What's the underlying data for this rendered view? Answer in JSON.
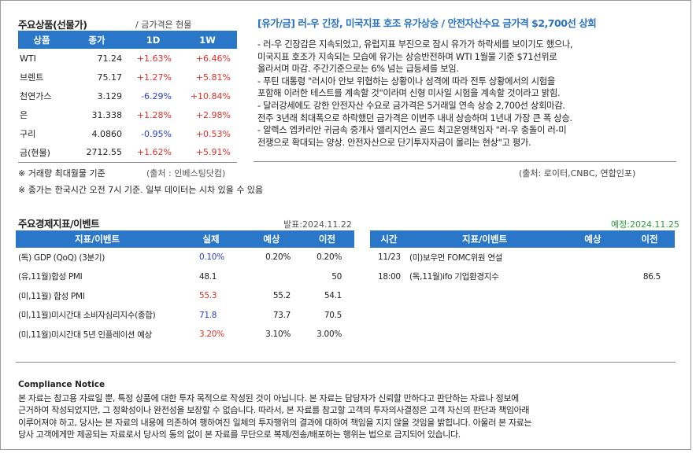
{
  "prices": {
    "title": "주요상품(선물가)",
    "subtitle": "/ 금가격은 현물",
    "headers": [
      "상품",
      "종가",
      "1D",
      "1W"
    ],
    "rows": [
      {
        "name": "WTI",
        "close": "71.24",
        "d1": "+1.63%",
        "w1": "+6.46%",
        "d1_dir": "up",
        "w1_dir": "up"
      },
      {
        "name": "브렌트",
        "close": "75.17",
        "d1": "+1.27%",
        "w1": "+5.81%",
        "d1_dir": "up",
        "w1_dir": "up"
      },
      {
        "name": "천연가스",
        "close": "3.129",
        "d1": "-6.29%",
        "w1": "+10.84%",
        "d1_dir": "down",
        "w1_dir": "up"
      },
      {
        "name": "은",
        "close": "31.338",
        "d1": "+1.28%",
        "w1": "+2.98%",
        "d1_dir": "up",
        "w1_dir": "up"
      },
      {
        "name": "구리",
        "close": "4.0860",
        "d1": "-0.95%",
        "w1": "+0.53%",
        "d1_dir": "down",
        "w1_dir": "up"
      },
      {
        "name": "금(현물)",
        "close": "2712.55",
        "d1": "+1.62%",
        "w1": "+5.91%",
        "d1_dir": "up",
        "w1_dir": "up"
      }
    ],
    "note1": "※ 거래량 최대월물 기준",
    "source": "(출처 : 인베스팅닷컴)",
    "note2": "※ 종가는 한국시간 오전 7시 기준. 일부 데이터는 시차 있을 수 있음"
  },
  "news": {
    "title": "[유가/금] 러-우 긴장, 미국지표 호조 유가상승 / 안전자산수요 금가격 $2,700선 상회",
    "lines": [
      "- 러-우 긴장감은 지속되었고, 유럽지표 부진으로 잠시 유가가 하락세를 보이기도 했으나,",
      "미국지표 호조가 지속되는 모습에 유가는 상승반전하며 WTI 1월물 기준 $71선위로",
      "올라서며 마감. 주간기준으로는 6% 넘는 급등세를 보임.",
      "- 푸틴 대통령 \"러시아 안보 위협하는 상황이나 성격에 따라 전투 상황에서의 시험을",
      "포함해 이러한 테스트를 계속할 것\"이라며 신형 미사일 시험을 계속할 것이라고 밝힘.",
      "- 달러강세에도 강한 안전자산 수요로 금가격은 5거래일 연속 상승 2,700선 상회마감.",
      "전주 3년래 최대폭으로 하락했던 금가격은 이번주 내내 상승하며 1년내 가장 큰 폭 상승.",
      "- 알렉스 엡카리안 귀금속 중개사 앨리지언스 골드 최고운영책임자 \"러-우 충돌이 러-미",
      "전쟁으로 확대되는 양상. 안전자산으로 단기투자자금이 몰리는 현상\"고 평가."
    ],
    "source": "(출처: 로이터,CNBC, 연합인포)"
  },
  "events": {
    "title": "주요경제지표/이벤트",
    "announce_date": "발표:2024.11.22",
    "scheduled_date": "예정:2024.11.25",
    "left_headers": [
      "지표/이벤트",
      "실제",
      "예상",
      "이전"
    ],
    "left_rows": [
      {
        "name": "(독) GDP (QoQ) (3분기)",
        "actual": "0.10%",
        "forecast": "0.20%",
        "prev": "0.20%",
        "actual_dir": "down"
      },
      {
        "name": "(유,11월)합성 PMI",
        "actual": "48.1",
        "forecast": "",
        "prev": "50",
        "actual_dir": "none"
      },
      {
        "name": "(미,11월) 합성 PMI",
        "actual": "55.3",
        "forecast": "55.2",
        "prev": "54.1",
        "actual_dir": "up"
      },
      {
        "name": "(미,11월)미시간대 소비자심리지수(종합)",
        "actual": "71.8",
        "forecast": "73.7",
        "prev": "70.5",
        "actual_dir": "down"
      },
      {
        "name": "(미,11월)미시간대 5년 인플레이션 예상",
        "actual": "3.20%",
        "forecast": "3.10%",
        "prev": "3.00%",
        "actual_dir": "up"
      }
    ],
    "right_headers": [
      "시간",
      "지표/이벤트",
      "예상",
      "이전"
    ],
    "right_rows": [
      {
        "time": "11/23",
        "name": "(미)보우먼 FOMC위원 연설",
        "forecast": "",
        "prev": ""
      },
      {
        "time": "18:00",
        "name": "(독,11월)ifo 기업환경지수",
        "forecast": "",
        "prev": "86.5"
      }
    ]
  },
  "compliance": {
    "title": "Compliance Notice",
    "lines": [
      "본 자료는 참고용 자료일 뿐, 특정 상품에 대한 투자 목적으로 작성된 것이 아닙니다. 본 자료는 담당자가 신뢰할 만하다고 판단하는 자료나 정보에",
      "근거하여 작성되었지만, 그 정확성이나 완전성을 보장할 수 없습니다. 따라서, 본 자료를 참고할 고객의 투자의사결정은 고객 자신의 판단과 책임아래",
      "이루어져야 하고, 당사는 본 자료의 내용에 의존하여 행하여진 일체의 투자행위의 결과에 대하여 책임을 지지 않을 것임을 밝힙니다. 아울러 본 자료는",
      "당사 고객에게만 제공되는 자료로서 당사의 동의 없이 본 자료를 무단으로 복제/전송/배포하는 행위는 법으로 금지되어 있습니다."
    ]
  }
}
